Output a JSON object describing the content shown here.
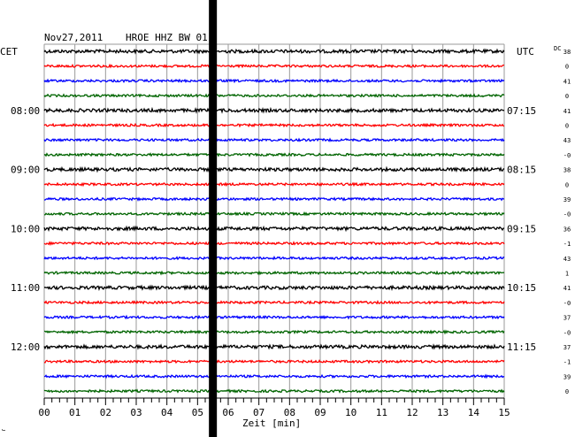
{
  "header": {
    "date": "Nov27,2011",
    "station": "HROE HHZ BW 01",
    "left_tz": "CET",
    "right_tz": "UTC",
    "dc_label": "DC"
  },
  "chart_data": {
    "type": "line",
    "description_free": true,
    "xlabel": "Zeit [min]",
    "x_ticks": [
      "00",
      "01",
      "02",
      "03",
      "04",
      "05",
      "06",
      "07",
      "08",
      "09",
      "10",
      "11",
      "12",
      "13",
      "14",
      "15"
    ],
    "xlim": [
      0,
      15
    ],
    "trace_colors": [
      "#000000",
      "#ff0000",
      "#0000ff",
      "#006400"
    ],
    "left_hour_labels": [
      {
        "trace": 4,
        "label": "08:00"
      },
      {
        "trace": 8,
        "label": "09:00"
      },
      {
        "trace": 12,
        "label": "10:00"
      },
      {
        "trace": 16,
        "label": "11:00"
      },
      {
        "trace": 20,
        "label": "12:00"
      }
    ],
    "right_hour_labels": [
      {
        "trace": 4,
        "label": "07:15"
      },
      {
        "trace": 8,
        "label": "08:15"
      },
      {
        "trace": 12,
        "label": "09:15"
      },
      {
        "trace": 16,
        "label": "10:15"
      },
      {
        "trace": 20,
        "label": "11:15"
      }
    ],
    "dc_values": [
      "38",
      "0",
      "41",
      "0",
      "41",
      "0",
      "43",
      "-0",
      "38",
      "0",
      "39",
      "-0",
      "36",
      "-1",
      "43",
      "1",
      "41",
      "-0",
      "37",
      "-0",
      "37",
      "-1",
      "39",
      "0"
    ],
    "event_minute": 5.5
  },
  "footer": {
    "corner_mark": "⌙"
  }
}
